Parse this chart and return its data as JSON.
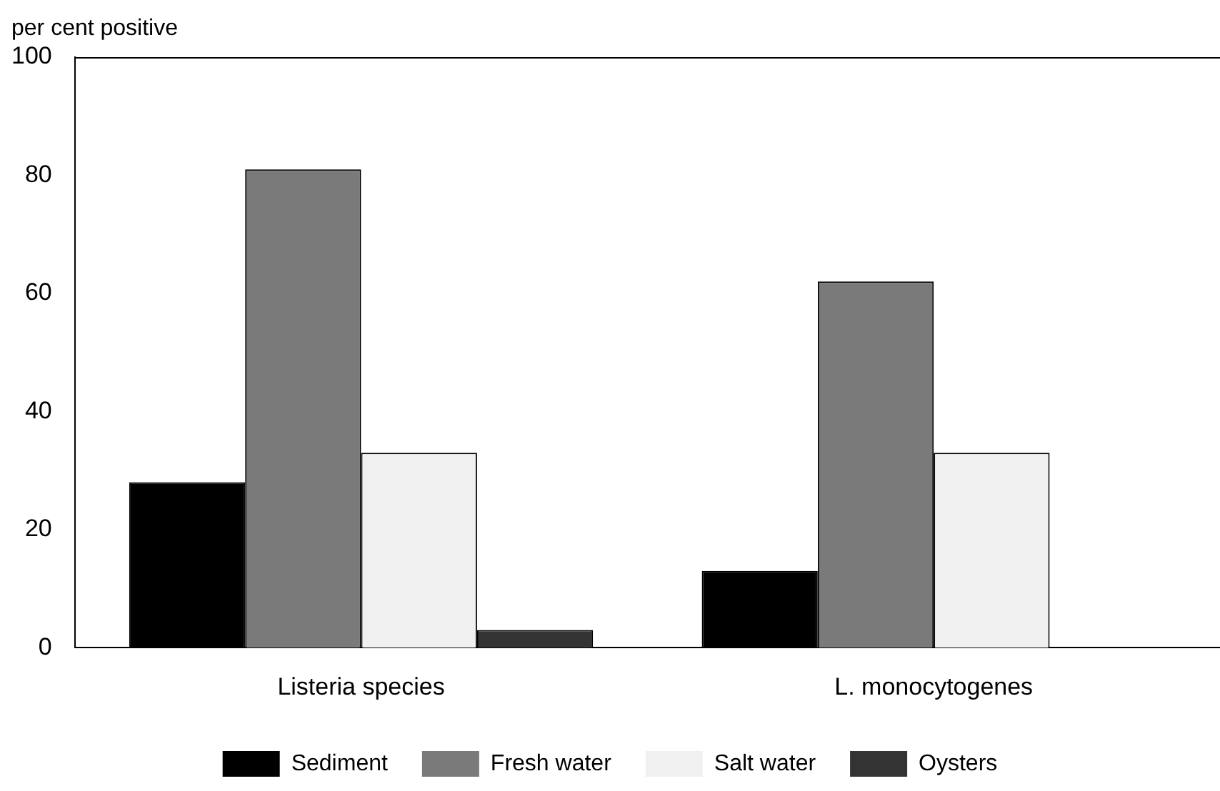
{
  "chart_data": {
    "type": "bar",
    "ylabel": "per cent positive",
    "categories": [
      "Listeria species",
      "L. monocytogenes"
    ],
    "series": [
      {
        "name": "Sediment",
        "color": "#000000",
        "values": [
          28,
          13
        ]
      },
      {
        "name": "Fresh water",
        "color": "#7a7a7a",
        "values": [
          81,
          62
        ]
      },
      {
        "name": "Salt water",
        "color": "#f0f0f0",
        "values": [
          33,
          33
        ]
      },
      {
        "name": "Oysters",
        "color": "#333333",
        "values": [
          3,
          0
        ]
      }
    ],
    "ylim": [
      0,
      100
    ],
    "yticks": [
      0,
      20,
      40,
      60,
      80,
      100
    ],
    "legend": "bottom"
  }
}
